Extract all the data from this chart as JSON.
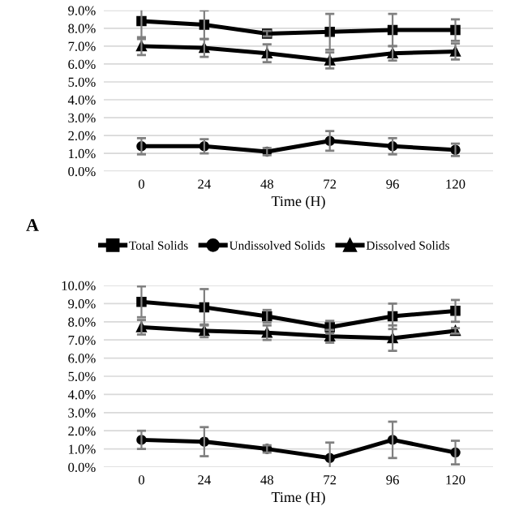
{
  "chart_data": [
    {
      "type": "line",
      "categories": [
        "0",
        "24",
        "48",
        "72",
        "96",
        "120"
      ],
      "xlabel": "Time (H)",
      "annotations": [
        "A"
      ],
      "ylim": [
        0,
        9
      ],
      "yticks": [
        {
          "value": 0,
          "label": "0.0%"
        },
        {
          "value": 1,
          "label": "1.0%"
        },
        {
          "value": 2,
          "label": "2.0%"
        },
        {
          "value": 3,
          "label": "3.0%"
        },
        {
          "value": 4,
          "label": "4.0%"
        },
        {
          "value": 5,
          "label": "5.0%"
        },
        {
          "value": 6,
          "label": "6.0%"
        },
        {
          "value": 7,
          "label": "7.0%"
        },
        {
          "value": 8,
          "label": "8.0%"
        },
        {
          "value": 9,
          "label": "9.0%"
        }
      ],
      "grid": "y",
      "legend": "bottom",
      "series": [
        {
          "name": "Total Solids",
          "color": "#000000",
          "marker": "square",
          "values": [
            8.4,
            8.2,
            7.7,
            7.8,
            7.9,
            7.9
          ],
          "errors": [
            1.0,
            0.8,
            0.15,
            1.0,
            0.9,
            0.6
          ]
        },
        {
          "name": "Undissolved Solids",
          "color": "#000000",
          "marker": "circle",
          "values": [
            1.4,
            1.4,
            1.1,
            1.7,
            1.4,
            1.2
          ],
          "errors": [
            0.45,
            0.4,
            0.2,
            0.55,
            0.45,
            0.35
          ]
        },
        {
          "name": "Dissolved Solids",
          "color": "#000000",
          "marker": "triangle",
          "values": [
            7.0,
            6.9,
            6.6,
            6.2,
            6.6,
            6.7
          ],
          "errors": [
            0.5,
            0.5,
            0.5,
            0.45,
            0.4,
            0.45
          ]
        }
      ]
    },
    {
      "type": "line",
      "categories": [
        "0",
        "24",
        "48",
        "72",
        "96",
        "120"
      ],
      "xlabel": "Time (H)",
      "ylim": [
        0,
        10
      ],
      "yticks": [
        {
          "value": 0,
          "label": "0.0%"
        },
        {
          "value": 1,
          "label": "1.0%"
        },
        {
          "value": 2,
          "label": "2.0%"
        },
        {
          "value": 3,
          "label": "3.0%"
        },
        {
          "value": 4,
          "label": "4.0%"
        },
        {
          "value": 5,
          "label": "5.0%"
        },
        {
          "value": 6,
          "label": "6.0%"
        },
        {
          "value": 7,
          "label": "7.0%"
        },
        {
          "value": 8,
          "label": "8.0%"
        },
        {
          "value": 9,
          "label": "9.0%"
        },
        {
          "value": 10,
          "label": "10.0%"
        }
      ],
      "grid": "y",
      "series": [
        {
          "color": "#000000",
          "marker": "square",
          "values": [
            9.1,
            8.8,
            8.3,
            7.7,
            8.3,
            8.6
          ],
          "errors": [
            0.85,
            1.0,
            0.35,
            0.35,
            0.7,
            0.6
          ]
        },
        {
          "color": "#000000",
          "marker": "circle",
          "values": [
            1.5,
            1.4,
            1.0,
            0.5,
            1.5,
            0.8
          ],
          "errors": [
            0.5,
            0.8,
            0.2,
            0.85,
            1.0,
            0.65
          ]
        },
        {
          "color": "#000000",
          "marker": "triangle",
          "values": [
            7.7,
            7.5,
            7.4,
            7.2,
            7.1,
            7.5
          ],
          "errors": [
            0.4,
            0.35,
            0.4,
            0.35,
            0.7,
            0.15
          ]
        }
      ]
    }
  ]
}
